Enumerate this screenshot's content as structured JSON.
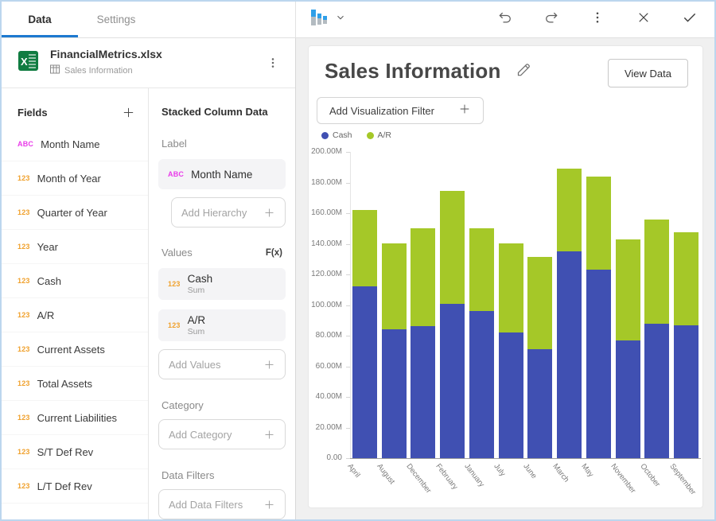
{
  "colors": {
    "accent": "#1d79d0",
    "window_border": "#bcd6ee",
    "cash_bar": "#4050b2",
    "ar_bar": "#a5c828",
    "text_field_icon": "#e93ce9",
    "numeric_field_icon": "#f0a12d",
    "excel_green": "#107c41"
  },
  "header": {
    "tabs": {
      "data": "Data",
      "settings": "Settings"
    }
  },
  "file": {
    "name": "FinancialMetrics.xlsx",
    "sheet": "Sales Information"
  },
  "icons": {
    "text_field": "ABC",
    "numeric_field": "123"
  },
  "fields_panel": {
    "title": "Fields",
    "items": [
      {
        "type": "string",
        "label": "Month Name"
      },
      {
        "type": "number",
        "label": "Month of Year"
      },
      {
        "type": "number",
        "label": "Quarter of Year"
      },
      {
        "type": "number",
        "label": "Year"
      },
      {
        "type": "number",
        "label": "Cash"
      },
      {
        "type": "number",
        "label": "A/R"
      },
      {
        "type": "number",
        "label": "Current Assets"
      },
      {
        "type": "number",
        "label": "Total Assets"
      },
      {
        "type": "number",
        "label": "Current Liabilities"
      },
      {
        "type": "number",
        "label": "S/T Def Rev"
      },
      {
        "type": "number",
        "label": "L/T Def Rev"
      }
    ]
  },
  "data_panel": {
    "title": "Stacked Column Data",
    "label_section": {
      "title": "Label",
      "chip": {
        "type": "string",
        "label": "Month Name"
      },
      "add_placeholder": "Add Hierarchy"
    },
    "values_section": {
      "title": "Values",
      "fx_label": "F(x)",
      "chips": [
        {
          "type": "number",
          "label": "Cash",
          "aggregation": "Sum"
        },
        {
          "type": "number",
          "label": "A/R",
          "aggregation": "Sum"
        }
      ],
      "add_placeholder": "Add Values"
    },
    "category_section": {
      "title": "Category",
      "add_placeholder": "Add Category"
    },
    "filters_section": {
      "title": "Data Filters",
      "add_placeholder": "Add Data Filters"
    }
  },
  "canvas": {
    "title": "Sales Information",
    "view_data_label": "View Data",
    "add_filter_label": "Add Visualization Filter"
  },
  "chart_data": {
    "type": "bar",
    "stacked": true,
    "title": "Sales Information",
    "categories": [
      "April",
      "August",
      "December",
      "February",
      "January",
      "July",
      "June",
      "March",
      "May",
      "November",
      "October",
      "September"
    ],
    "series": [
      {
        "name": "Cash",
        "color": "#4050b2",
        "values_millions": [
          112,
          84,
          86,
          101,
          96,
          82,
          71,
          135,
          123,
          77,
          88,
          87
        ]
      },
      {
        "name": "A/R",
        "color": "#a5c828",
        "values_millions": [
          50,
          56,
          64,
          74,
          54,
          58,
          60,
          54,
          61,
          66,
          68,
          61
        ]
      }
    ],
    "unit_suffix": "M",
    "ylim_millions": [
      0,
      200
    ],
    "y_tick_step_millions": 20,
    "y_ticks": [
      "0.00",
      "20.00M",
      "40.00M",
      "60.00M",
      "80.00M",
      "100.00M",
      "120.00M",
      "140.00M",
      "160.00M",
      "180.00M",
      "200.00M"
    ],
    "xlabel": "",
    "ylabel": "",
    "legend_position": "top-left",
    "grid": false,
    "x_label_rotation_deg": 52
  }
}
